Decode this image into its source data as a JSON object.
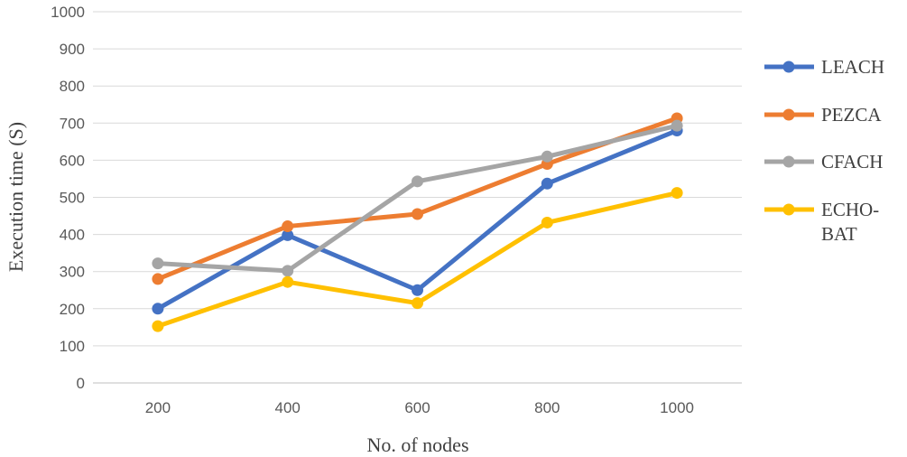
{
  "chart_data": {
    "type": "line",
    "title": "",
    "xlabel": "No. of nodes",
    "ylabel": "Execution time (S)",
    "categories": [
      "200",
      "400",
      "600",
      "800",
      "1000"
    ],
    "ylim": [
      0,
      1000
    ],
    "yticks": [
      "0",
      "100",
      "200",
      "300",
      "400",
      "500",
      "600",
      "700",
      "800",
      "900",
      "1000"
    ],
    "grid": true,
    "legend_position": "right",
    "series": [
      {
        "name": "LEACH",
        "color": "#4472C4",
        "values": [
          200,
          398,
          250,
          537,
          680
        ]
      },
      {
        "name": "PEZCA",
        "color": "#ED7D31",
        "values": [
          280,
          422,
          455,
          590,
          713
        ]
      },
      {
        "name": "CFACH",
        "color": "#A5A5A5",
        "values": [
          322,
          302,
          543,
          610,
          693
        ]
      },
      {
        "name": "ECHO-BAT",
        "color": "#FFC000",
        "values": [
          153,
          272,
          215,
          432,
          512
        ]
      }
    ]
  }
}
